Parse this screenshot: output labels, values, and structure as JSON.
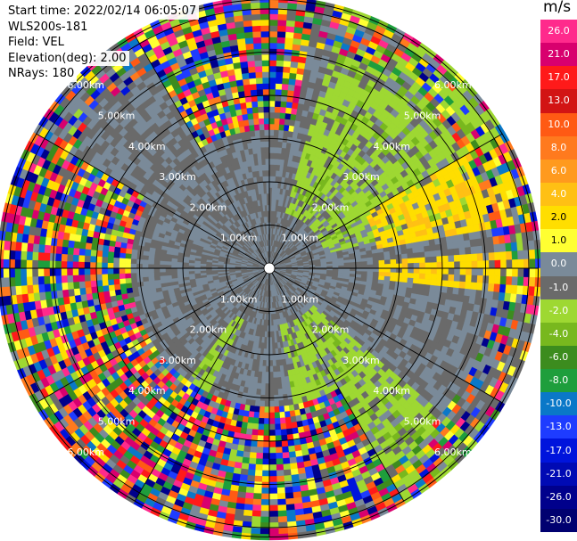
{
  "info": {
    "start_time": "Start time: 2022/02/14 06:05:07",
    "station": "WLS200s-181",
    "field": "Field: VEL",
    "elevation": "Elevation(deg): 2.00",
    "nrays": "NRays: 180"
  },
  "colorbar": {
    "unit": "m/s",
    "ticks": [
      "26.0",
      "21.0",
      "17.0",
      "13.0",
      "10.0",
      "8.0",
      "6.0",
      "4.0",
      "2.0",
      "1.0",
      "0.0",
      "-1.0",
      "-2.0",
      "-4.0",
      "-6.0",
      "-8.0",
      "-10.0",
      "-13.0",
      "-17.0",
      "-21.0",
      "-26.0",
      "-30.0"
    ],
    "colors": [
      "#ff2a8c",
      "#d8006e",
      "#ff1a1a",
      "#d21414",
      "#ff5a14",
      "#ff7a1e",
      "#ff9a1e",
      "#ffc014",
      "#ffde00",
      "#ffff32",
      "#7a8a99",
      "#6a6a6a",
      "#9ed832",
      "#78b81e",
      "#3c8c1e",
      "#1e9e3c",
      "#0a78c8",
      "#1e3cff",
      "#0014dc",
      "#000ab4",
      "#00008c",
      "#000070"
    ]
  },
  "chart_data": {
    "type": "heatmap",
    "projection": "polar PPI",
    "field": "VEL",
    "units": "m/s",
    "nrays": 180,
    "elevation_deg": 2.0,
    "ring_labels": [
      "1.00km",
      "2.00km",
      "3.00km",
      "4.00km",
      "5.00km",
      "6.00km"
    ],
    "ring_distances_km": [
      1,
      2,
      3,
      4,
      5,
      6
    ],
    "spokes_deg": [
      0,
      30,
      60,
      90,
      120,
      150,
      180,
      210,
      240,
      270,
      300,
      330
    ],
    "vmin": -30.0,
    "vmax": 26.0,
    "noise_sectors_deg": [
      [
        200,
        300
      ],
      [
        330,
        360
      ],
      [
        0,
        10
      ],
      [
        150,
        200
      ]
    ],
    "positive_sectors_deg": [
      [
        60,
        80
      ],
      [
        85,
        95
      ]
    ],
    "negative_sectors_deg": [
      [
        15,
        75
      ],
      [
        130,
        170
      ],
      [
        205,
        215
      ]
    ]
  }
}
